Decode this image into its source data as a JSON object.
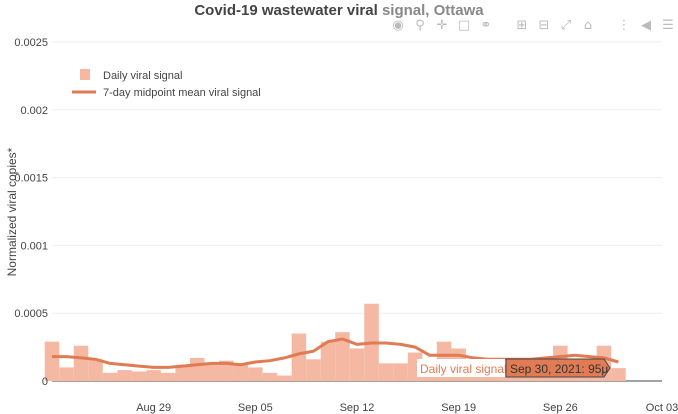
{
  "title": {
    "main": "Covid-19 wastewater viral",
    "faded": "signal, Ottawa"
  },
  "modebar": {
    "icons": [
      "camera-icon",
      "zoom-icon",
      "pan-icon",
      "box-select-icon",
      "lasso-icon",
      "zoom-in-icon",
      "zoom-out-icon",
      "autoscale-icon",
      "reset-axes-icon",
      "spike-lines-icon",
      "hover-closest-icon",
      "hover-compare-icon",
      "plotly-logo-icon"
    ]
  },
  "hover": {
    "trace_label": "Daily viral signal",
    "value_label": "Sep 30, 2021: 95μ"
  },
  "chart_data": {
    "type": "bar",
    "title": "Covid-19 wastewater viral signal, Ottawa",
    "xlabel": "",
    "ylabel": "Normalized viral copies*",
    "ylim": [
      0,
      0.0025
    ],
    "xlim": [
      "2021-08-22",
      "2021-10-03"
    ],
    "y_ticks": [
      "0",
      "0.0005",
      "0.001",
      "0.0015",
      "0.002",
      "0.0025"
    ],
    "y_tick_values": [
      0,
      0.0005,
      0.001,
      0.0015,
      0.002,
      0.0025
    ],
    "x_ticks": [
      "Aug 29",
      "Sep 05",
      "Sep 12",
      "Sep 19",
      "Sep 26",
      "Oct 03"
    ],
    "x_tick_dates": [
      "2021-08-29",
      "2021-09-05",
      "2021-09-12",
      "2021-09-19",
      "2021-09-26",
      "2021-10-03"
    ],
    "legend": {
      "placement": "top-left",
      "entries": [
        "Daily viral signal",
        "7-day midpoint mean viral signal"
      ]
    },
    "colors": {
      "bars": "#f4b8a3",
      "line": "#e07b54",
      "hover_bg": "#e07b54"
    },
    "series": [
      {
        "name": "Daily viral signal",
        "type": "bar",
        "x": [
          "2021-08-22",
          "2021-08-23",
          "2021-08-24",
          "2021-08-25",
          "2021-08-26",
          "2021-08-27",
          "2021-08-28",
          "2021-08-29",
          "2021-08-30",
          "2021-08-31",
          "2021-09-01",
          "2021-09-02",
          "2021-09-03",
          "2021-09-04",
          "2021-09-05",
          "2021-09-06",
          "2021-09-07",
          "2021-09-08",
          "2021-09-09",
          "2021-09-10",
          "2021-09-11",
          "2021-09-12",
          "2021-09-13",
          "2021-09-14",
          "2021-09-15",
          "2021-09-16",
          "2021-09-17",
          "2021-09-18",
          "2021-09-19",
          "2021-09-20",
          "2021-09-21",
          "2021-09-22",
          "2021-09-23",
          "2021-09-24",
          "2021-09-25",
          "2021-09-26",
          "2021-09-27",
          "2021-09-28",
          "2021-09-29",
          "2021-09-30"
        ],
        "y": [
          0.00029,
          0.0001,
          0.00026,
          0.00016,
          6e-05,
          8e-05,
          7e-05,
          8e-05,
          6e-05,
          0.00012,
          0.00017,
          0.00013,
          0.00015,
          0.00013,
          0.0001,
          6e-05,
          4e-05,
          0.00035,
          0.00016,
          0.00029,
          0.00036,
          0.00024,
          0.00057,
          0.00013,
          0.00013,
          0.00021,
          0.00015,
          0.00029,
          0.00024,
          0.00016,
          0.00017,
          0.00014,
          0.00013,
          0.00016,
          0.00016,
          0.00026,
          0.00013,
          0.00012,
          0.00026,
          9.5e-05
        ]
      },
      {
        "name": "7-day midpoint mean viral signal",
        "type": "line",
        "x": [
          "2021-08-22",
          "2021-08-23",
          "2021-08-24",
          "2021-08-25",
          "2021-08-26",
          "2021-08-27",
          "2021-08-28",
          "2021-08-29",
          "2021-08-30",
          "2021-08-31",
          "2021-09-01",
          "2021-09-02",
          "2021-09-03",
          "2021-09-04",
          "2021-09-05",
          "2021-09-06",
          "2021-09-07",
          "2021-09-08",
          "2021-09-09",
          "2021-09-10",
          "2021-09-11",
          "2021-09-12",
          "2021-09-13",
          "2021-09-14",
          "2021-09-15",
          "2021-09-16",
          "2021-09-17",
          "2021-09-18",
          "2021-09-19",
          "2021-09-20",
          "2021-09-21",
          "2021-09-22",
          "2021-09-23",
          "2021-09-24",
          "2021-09-25",
          "2021-09-26",
          "2021-09-27",
          "2021-09-28",
          "2021-09-29",
          "2021-09-30"
        ],
        "y": [
          0.00018,
          0.00018,
          0.00017,
          0.00016,
          0.00013,
          0.00012,
          0.00011,
          0.0001,
          0.0001,
          0.00011,
          0.00012,
          0.00013,
          0.00013,
          0.00012,
          0.00014,
          0.00015,
          0.00017,
          0.0002,
          0.00022,
          0.00029,
          0.00031,
          0.00027,
          0.00028,
          0.00028,
          0.00027,
          0.00025,
          0.00019,
          0.00019,
          0.00019,
          0.00017,
          0.00016,
          0.00016,
          0.00016,
          0.00016,
          0.00017,
          0.00018,
          0.00019,
          0.00018,
          0.00017,
          0.00014
        ]
      }
    ]
  }
}
